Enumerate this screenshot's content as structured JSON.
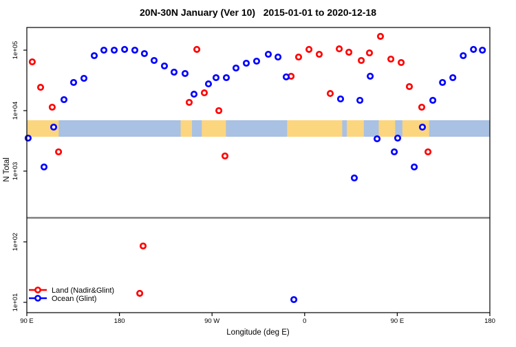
{
  "title": "20N-30N January (Ver 10)   2015-01-01 to 2020-12-18",
  "chart_data": {
    "type": "scatter",
    "title": "20N-30N January (Ver 10)   2015-01-01 to 2020-12-18",
    "xlabel": "Longitude (deg E)",
    "ylabel": "N Total",
    "x_axis": {
      "note": "longitude wraps: axis spans 450 deg starting at 90E",
      "span_deg": 450,
      "ticks": [
        {
          "label": "90 E",
          "pos_deg": 0
        },
        {
          "label": "180",
          "pos_deg": 90
        },
        {
          "label": "90 W",
          "pos_deg": 180
        },
        {
          "label": "0",
          "pos_deg": 270
        },
        {
          "label": "90 E",
          "pos_deg": 360
        },
        {
          "label": "180",
          "pos_deg": 450
        }
      ]
    },
    "y_axis": {
      "scale": "log",
      "broken_axis": true,
      "ticks": [
        {
          "label": "1e+01",
          "value": 10
        },
        {
          "label": "1e+02",
          "value": 100
        },
        {
          "label": "1e+03",
          "value": 1000
        },
        {
          "label": "1e+04",
          "value": 10000
        },
        {
          "label": "1e+05",
          "value": 100000
        }
      ]
    },
    "series": [
      {
        "name": "Land (Nadir&Glint)",
        "color": "#ff0000",
        "marker": "open-circle",
        "points": [
          {
            "L": 5.3,
            "v": 64100
          },
          {
            "L": 13.4,
            "v": 24300
          },
          {
            "L": 24.7,
            "v": 11400
          },
          {
            "L": 30.8,
            "v": 2080
          },
          {
            "L": 109.7,
            "v": 14.1
          },
          {
            "L": 113.0,
            "v": 85.5
          },
          {
            "L": 157.8,
            "v": 13700
          },
          {
            "L": 165.2,
            "v": 103000
          },
          {
            "L": 172.5,
            "v": 19700
          },
          {
            "L": 186.6,
            "v": 10000
          },
          {
            "L": 192.6,
            "v": 1780
          },
          {
            "L": 256.8,
            "v": 37000
          },
          {
            "L": 264.1,
            "v": 77000
          },
          {
            "L": 274.2,
            "v": 103000
          },
          {
            "L": 284.2,
            "v": 85500
          },
          {
            "L": 294.9,
            "v": 19200
          },
          {
            "L": 303.6,
            "v": 105000
          },
          {
            "L": 313.0,
            "v": 92500
          },
          {
            "L": 325.0,
            "v": 67600
          },
          {
            "L": 333.0,
            "v": 90100
          },
          {
            "L": 343.7,
            "v": 169000
          },
          {
            "L": 353.8,
            "v": 71100
          },
          {
            "L": 363.8,
            "v": 62400
          },
          {
            "L": 371.8,
            "v": 25000
          },
          {
            "L": 383.8,
            "v": 11400
          },
          {
            "L": 389.9,
            "v": 2080
          }
        ]
      },
      {
        "name": "Ocean (Glint)",
        "color": "#0000ff",
        "marker": "open-circle",
        "points": [
          {
            "L": 1.3,
            "v": 3510
          },
          {
            "L": 16.7,
            "v": 1170
          },
          {
            "L": 26.1,
            "v": 5330
          },
          {
            "L": 36.1,
            "v": 15200
          },
          {
            "L": 45.5,
            "v": 29200
          },
          {
            "L": 55.5,
            "v": 34200
          },
          {
            "L": 65.5,
            "v": 81100
          },
          {
            "L": 74.9,
            "v": 100000
          },
          {
            "L": 84.9,
            "v": 100000
          },
          {
            "L": 95.0,
            "v": 103000
          },
          {
            "L": 105.0,
            "v": 100000
          },
          {
            "L": 114.3,
            "v": 87700
          },
          {
            "L": 123.7,
            "v": 67600
          },
          {
            "L": 133.7,
            "v": 54800
          },
          {
            "L": 143.1,
            "v": 43300
          },
          {
            "L": 153.8,
            "v": 41100
          },
          {
            "L": 162.5,
            "v": 18700
          },
          {
            "L": 176.5,
            "v": 27700
          },
          {
            "L": 183.9,
            "v": 35100
          },
          {
            "L": 193.9,
            "v": 35100
          },
          {
            "L": 203.3,
            "v": 50700
          },
          {
            "L": 213.3,
            "v": 60800
          },
          {
            "L": 223.3,
            "v": 65800
          },
          {
            "L": 234.7,
            "v": 85500
          },
          {
            "L": 244.1,
            "v": 77000
          },
          {
            "L": 252.1,
            "v": 36100
          },
          {
            "L": 259.5,
            "v": 11.1
          },
          {
            "L": 304.9,
            "v": 15600
          },
          {
            "L": 318.3,
            "v": 770
          },
          {
            "L": 323.7,
            "v": 14800
          },
          {
            "L": 333.7,
            "v": 37100
          },
          {
            "L": 340.4,
            "v": 3420
          },
          {
            "L": 357.1,
            "v": 2080
          },
          {
            "L": 360.4,
            "v": 3510
          },
          {
            "L": 376.5,
            "v": 1170
          },
          {
            "L": 384.5,
            "v": 5330
          },
          {
            "L": 394.6,
            "v": 14800
          },
          {
            "L": 404.0,
            "v": 29200
          },
          {
            "L": 414.0,
            "v": 35100
          },
          {
            "L": 424.1,
            "v": 81100
          },
          {
            "L": 434.1,
            "v": 103000
          },
          {
            "L": 442.8,
            "v": 100000
          }
        ]
      }
    ],
    "map_band": {
      "description": "20N-30N latitude strip world map drawn across plot",
      "ocean_color": "#a9c1e2",
      "land_color": "#fcd57f",
      "land_segments_deg": [
        [
          0,
          31
        ],
        [
          149.5,
          160.5
        ],
        [
          170,
          193.5
        ],
        [
          253,
          306.5
        ],
        [
          311,
          327.5
        ],
        [
          342,
          358
        ],
        [
          365,
          391
        ]
      ]
    },
    "break_line_color": "#7d7d7d",
    "legend_position": "bottom-left",
    "grid": false
  },
  "legend": {
    "items": [
      {
        "label": "Land (Nadir&Glint)",
        "color": "#ff0000"
      },
      {
        "label": "Ocean (Glint)",
        "color": "#0000ff"
      }
    ]
  }
}
